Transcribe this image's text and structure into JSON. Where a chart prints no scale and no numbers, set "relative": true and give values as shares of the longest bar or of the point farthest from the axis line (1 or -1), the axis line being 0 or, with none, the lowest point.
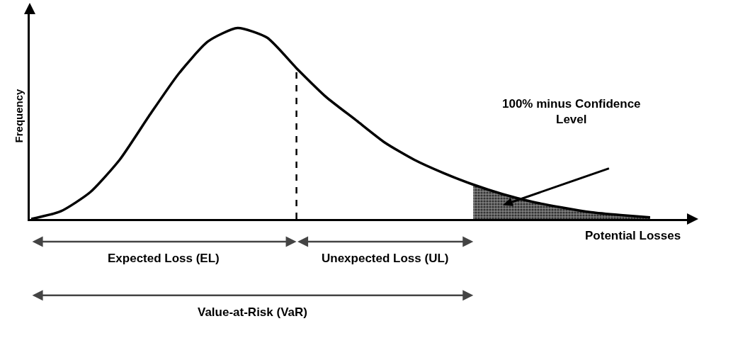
{
  "chart_data": {
    "type": "line",
    "relative": true,
    "xlabel": "Potential Losses",
    "ylabel": "Frequency",
    "categories": [
      null,
      null,
      null,
      null,
      null,
      null,
      null,
      null,
      null,
      null,
      null,
      null,
      null,
      null,
      null,
      null,
      null,
      null,
      null,
      null,
      null,
      null
    ],
    "series": [
      {
        "color": "#000000",
        "values": [
          0,
          0.04,
          0.14,
          0.31,
          0.54,
          0.76,
          0.93,
          1.0,
          0.95,
          0.79,
          0.64,
          0.52,
          0.4,
          0.31,
          0.24,
          0.18,
          0.13,
          0.09,
          0.06,
          0.035,
          0.02,
          0.008
        ]
      },
      {
        "type": "area",
        "color": "#808080",
        "values": [
          null,
          null,
          null,
          null,
          null,
          null,
          null,
          null,
          null,
          null,
          null,
          null,
          null,
          null,
          null,
          0.18,
          0.13,
          0.09,
          0.06,
          0.035,
          0.02,
          0.008
        ]
      }
    ],
    "annotations": [
      "Expected Loss (EL)",
      "Unexpected Loss (UL)",
      "Value-at-Risk (VaR)",
      "100% minus Confidence Level"
    ],
    "legend": false,
    "marker": "none",
    "line_style": "solid"
  }
}
